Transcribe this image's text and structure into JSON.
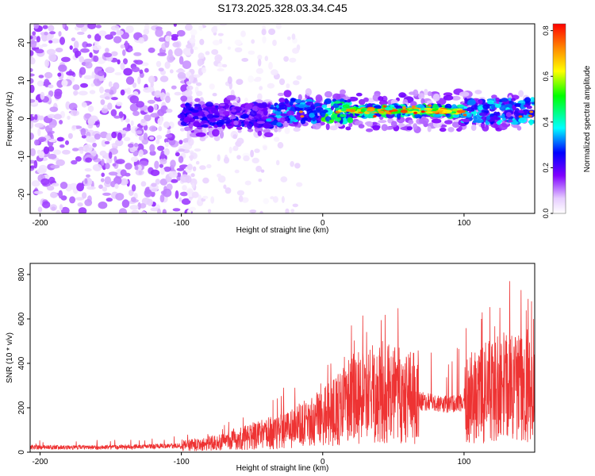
{
  "figure": {
    "title": "S173.2025.328.03.34.C45"
  },
  "chart_data": [
    {
      "type": "heatmap",
      "name": "spectrogram",
      "xlabel": "Height of straight line (km)",
      "ylabel": "Frequency (Hz)",
      "xlim": [
        -207,
        150
      ],
      "ylim": [
        -25,
        25
      ],
      "xticks": [
        -200,
        -100,
        0,
        100
      ],
      "xtick_labels": [
        "-200",
        "-100",
        "0",
        "100"
      ],
      "yticks": [
        -20,
        -10,
        0,
        10,
        20
      ],
      "ytick_labels": [
        "-20",
        "-10",
        "0",
        "10",
        "20"
      ],
      "colorbar": {
        "label": "Normalized spectral amplitude",
        "range": [
          0,
          0.83
        ],
        "ticks": [
          0,
          0.2,
          0.4,
          0.6,
          0.8
        ],
        "tick_labels": [
          "0.0",
          "0.2",
          "0.4",
          "0.6",
          "0.8"
        ]
      },
      "signal_band": {
        "x_start": -100,
        "x_end": 150,
        "center_frequency": 2,
        "halfwidth": 3,
        "peak_amplitude": 0.83
      },
      "noise_region": {
        "x_start": -207,
        "x_end": -95,
        "amplitude": 0.15
      }
    },
    {
      "type": "line",
      "name": "snr",
      "xlabel": "Height of straight line (km)",
      "ylabel": "SNR (10 * v/v)",
      "xlim": [
        -207,
        150
      ],
      "ylim": [
        0,
        850
      ],
      "xticks": [
        -200,
        -100,
        0,
        100
      ],
      "xtick_labels": [
        "-200",
        "-100",
        "0",
        "100"
      ],
      "yticks": [
        0,
        200,
        400,
        600,
        800
      ],
      "ytick_labels": [
        "0",
        "200",
        "400",
        "600",
        "800"
      ],
      "color": "#ee3333",
      "envelope": {
        "x": [
          -207,
          -150,
          -100,
          -80,
          -60,
          -40,
          -20,
          0,
          10,
          20,
          30,
          40,
          50,
          60,
          70,
          80,
          90,
          100,
          110,
          120,
          130,
          140,
          150
        ],
        "y": [
          22,
          22,
          28,
          40,
          60,
          85,
          110,
          160,
          190,
          230,
          250,
          255,
          265,
          255,
          230,
          220,
          215,
          225,
          255,
          280,
          300,
          290,
          260
        ]
      },
      "peaks": {
        "x": [
          -160,
          -28,
          -20,
          -15,
          10,
          25,
          28,
          42,
          58,
          62,
          105,
          112,
          125,
          132,
          140,
          145,
          150
        ],
        "y": [
          55,
          290,
          290,
          190,
          265,
          450,
          615,
          500,
          400,
          355,
          450,
          600,
          650,
          770,
          730,
          690,
          830
        ]
      }
    }
  ]
}
